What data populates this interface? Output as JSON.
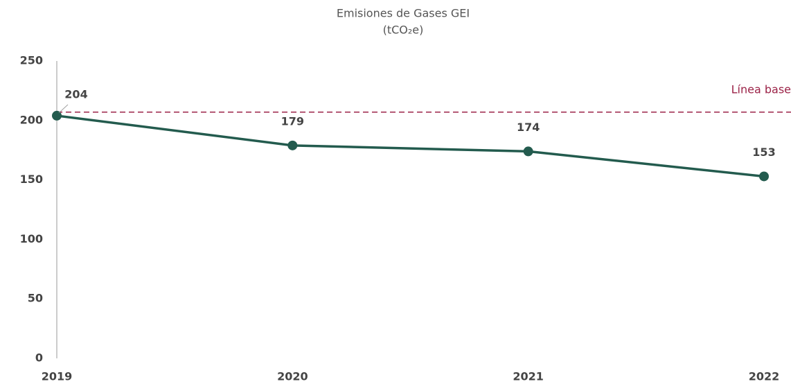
{
  "chart_data": {
    "type": "line",
    "title": "Emisiones de Gases GEI",
    "subtitle": "(tCO₂e)",
    "categories": [
      "2019",
      "2020",
      "2021",
      "2022"
    ],
    "series": [
      {
        "name": "Emisiones",
        "color": "#235b4e",
        "values": [
          204,
          179,
          174,
          153
        ]
      }
    ],
    "ylim": [
      0,
      250
    ],
    "yticks": [
      0,
      50,
      100,
      150,
      200,
      250
    ],
    "grid": false,
    "baseline": {
      "value": 207,
      "label": "Línea base",
      "color": "#9b2247"
    }
  }
}
